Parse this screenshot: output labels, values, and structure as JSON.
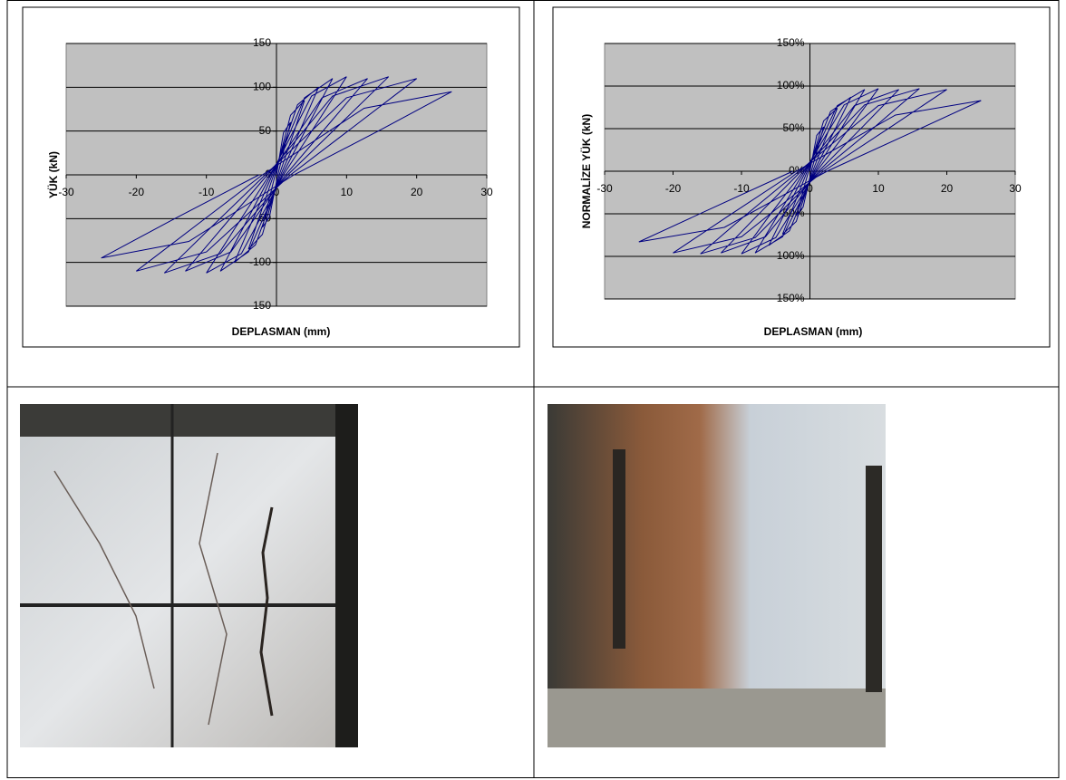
{
  "chart_data": [
    {
      "type": "line",
      "xlabel": "DEPLASMAN (mm)",
      "ylabel": "YÜK (kN)",
      "color": "#000080",
      "xlim": [
        -30,
        30
      ],
      "xticks": [
        -30,
        -20,
        -10,
        0,
        10,
        20,
        30
      ],
      "ylim": [
        -150,
        150
      ],
      "yticks": [
        -150,
        -100,
        -50,
        0,
        50,
        100,
        150
      ],
      "grid": true,
      "x": [
        0,
        1,
        2,
        1.2,
        0.2,
        -1,
        -2,
        -1.2,
        -0.2,
        2,
        4,
        2.4,
        0.4,
        -2,
        -4,
        -2.4,
        -0.4,
        3,
        6,
        3.6,
        0.6,
        -3,
        -6,
        -3.6,
        -0.6,
        4,
        8,
        4.8,
        0.8,
        -4,
        -8,
        -4.8,
        -0.8,
        5,
        10,
        6,
        1,
        -5,
        -10,
        -6,
        -1,
        6.5,
        13,
        7.8,
        1.3,
        -6.5,
        -13,
        -7.8,
        -1.3,
        8,
        16,
        9.6,
        1.6,
        -8,
        -16,
        -9.6,
        -1.6,
        10,
        20,
        12,
        2,
        -10,
        -20,
        -12,
        -2,
        12.5,
        25,
        15,
        2.5,
        -12.5,
        -25,
        -15,
        -2.5
      ],
      "values": [
        0,
        48,
        60,
        33,
        0,
        -48,
        -60,
        -33,
        0,
        68,
        85,
        47,
        0,
        -68,
        -85,
        -47,
        0,
        80,
        100,
        55,
        0,
        -80,
        -100,
        -55,
        0,
        88,
        110,
        61,
        0,
        -88,
        -110,
        -61,
        0,
        90,
        112,
        62,
        0,
        -90,
        -112,
        -62,
        0,
        88,
        110,
        61,
        0,
        -88,
        -110,
        -61,
        0,
        90,
        112,
        62,
        0,
        -90,
        -112,
        -62,
        0,
        88,
        110,
        61,
        0,
        -88,
        -110,
        -61,
        0,
        76,
        95,
        52,
        0,
        -76,
        -95,
        -52,
        0
      ]
    },
    {
      "type": "line",
      "xlabel": "DEPLASMAN (mm)",
      "ylabel": "NORMALİZE YÜK (kN)",
      "color": "#000080",
      "xlim": [
        -30,
        30
      ],
      "xticks": [
        -30,
        -20,
        -10,
        0,
        10,
        20,
        30
      ],
      "ylim": [
        -150,
        150
      ],
      "yticks": [
        {
          "value": -150,
          "label": "-150%"
        },
        {
          "value": -100,
          "label": "-100%"
        },
        {
          "value": -50,
          "label": "-50%"
        },
        {
          "value": 0,
          "label": "0%"
        },
        {
          "value": 50,
          "label": "50%"
        },
        {
          "value": 100,
          "label": "100%"
        },
        {
          "value": 150,
          "label": "150%"
        }
      ],
      "grid": true,
      "x": [
        0,
        1,
        2,
        1.2,
        0.2,
        -1,
        -2,
        -1.2,
        -0.2,
        2,
        4,
        2.4,
        0.4,
        -2,
        -4,
        -2.4,
        -0.4,
        3,
        6,
        3.6,
        0.6,
        -3,
        -6,
        -3.6,
        -0.6,
        4,
        8,
        4.8,
        0.8,
        -4,
        -8,
        -4.8,
        -0.8,
        5,
        10,
        6,
        1,
        -5,
        -10,
        -6,
        -1,
        6.5,
        13,
        7.8,
        1.3,
        -6.5,
        -13,
        -7.8,
        -1.3,
        8,
        16,
        9.6,
        1.6,
        -8,
        -16,
        -9.6,
        -1.6,
        10,
        20,
        12,
        2,
        -10,
        -20,
        -12,
        -2,
        12.5,
        25,
        15,
        2.5,
        -12.5,
        -25,
        -15,
        -2.5
      ],
      "values": [
        0,
        42,
        52,
        29,
        0,
        -42,
        -52,
        -29,
        0,
        59,
        74,
        41,
        0,
        -59,
        -74,
        -41,
        0,
        70,
        87,
        48,
        0,
        -70,
        -87,
        -48,
        0,
        77,
        96,
        53,
        0,
        -77,
        -96,
        -53,
        0,
        78,
        97,
        53,
        0,
        -78,
        -97,
        -53,
        0,
        77,
        96,
        53,
        0,
        -77,
        -96,
        -53,
        0,
        78,
        97,
        53,
        0,
        -78,
        -97,
        -53,
        0,
        77,
        96,
        53,
        0,
        -77,
        -96,
        -53,
        0,
        66,
        83,
        46,
        0,
        -66,
        -83,
        -46,
        0
      ]
    }
  ]
}
